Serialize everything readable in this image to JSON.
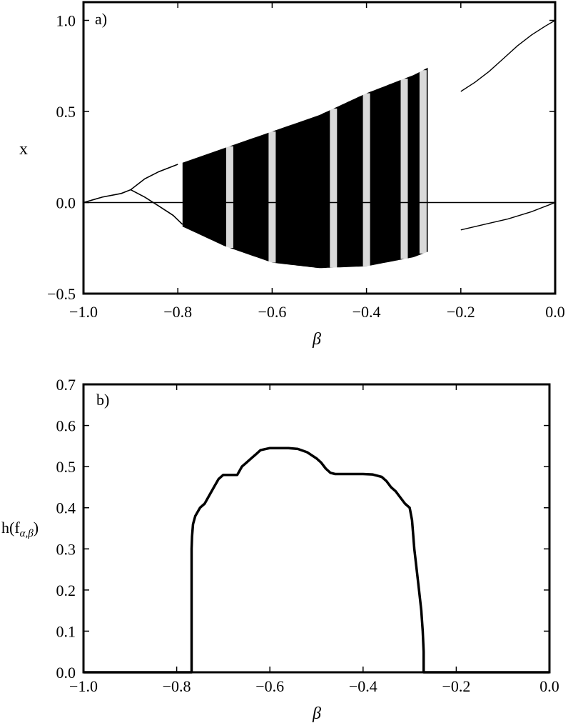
{
  "chart_data": [
    {
      "type": "scatter",
      "panel_label": "a)",
      "xlabel": "β",
      "ylabel": "x",
      "xlim": [
        -1.0,
        0.0
      ],
      "ylim": [
        -0.5,
        1.1
      ],
      "x_ticks": [
        "−1.0",
        "−0.8",
        "−0.6",
        "−0.4",
        "−0.2",
        "0.0"
      ],
      "x_tick_values": [
        -1.0,
        -0.8,
        -0.6,
        -0.4,
        -0.2,
        0.0
      ],
      "y_ticks": [
        "−0.5",
        "0.0",
        "0.5",
        "1.0"
      ],
      "y_tick_values": [
        -0.5,
        0.0,
        0.5,
        1.0
      ],
      "grid": false,
      "description_series": [
        {
          "role": "unstable-fixed-point-line",
          "x": [
            -1.0,
            0.0
          ],
          "y": [
            0.0,
            0.0
          ]
        },
        {
          "role": "stable-branch-upper-right",
          "x": [
            -0.2,
            -0.17,
            -0.14,
            -0.11,
            -0.08,
            -0.05,
            -0.02,
            0.0
          ],
          "y": [
            0.61,
            0.66,
            0.72,
            0.79,
            0.86,
            0.92,
            0.97,
            1.0
          ]
        },
        {
          "role": "stable-branch-lower-right",
          "x": [
            -0.2,
            -0.15,
            -0.1,
            -0.05,
            0.0
          ],
          "y": [
            -0.15,
            -0.12,
            -0.09,
            -0.05,
            0.0
          ]
        },
        {
          "role": "chaotic-band-upper-envelope",
          "x": [
            -0.9,
            -0.85,
            -0.8,
            -0.7,
            -0.6,
            -0.5,
            -0.4,
            -0.3,
            -0.27
          ],
          "y": [
            0.07,
            0.17,
            0.21,
            0.3,
            0.39,
            0.48,
            0.6,
            0.7,
            0.74
          ]
        },
        {
          "role": "chaotic-band-lower-envelope",
          "x": [
            -0.9,
            -0.85,
            -0.8,
            -0.7,
            -0.6,
            -0.5,
            -0.4,
            -0.3,
            -0.27
          ],
          "y": [
            0.07,
            -0.04,
            -0.12,
            -0.24,
            -0.33,
            -0.36,
            -0.35,
            -0.3,
            -0.27
          ]
        }
      ],
      "chaotic_region": {
        "x_start": -0.79,
        "x_end": -0.27
      },
      "periodic_windows": [
        -0.69,
        -0.6,
        -0.47,
        -0.4,
        -0.32,
        -0.28
      ]
    },
    {
      "type": "line",
      "panel_label": "b)",
      "xlabel": "β",
      "ylabel": "h(f",
      "ylabel_subscript": "α,β",
      "ylabel_close": ")",
      "xlim": [
        -1.0,
        0.0
      ],
      "ylim": [
        0.0,
        0.7
      ],
      "x_ticks": [
        "−1.0",
        "−0.8",
        "−0.6",
        "−0.4",
        "−0.2",
        "0.0"
      ],
      "x_tick_values": [
        -1.0,
        -0.8,
        -0.6,
        -0.4,
        -0.2,
        0.0
      ],
      "y_ticks": [
        "0.0",
        "0.1",
        "0.2",
        "0.3",
        "0.4",
        "0.5",
        "0.6",
        "0.7"
      ],
      "y_tick_values": [
        0.0,
        0.1,
        0.2,
        0.3,
        0.4,
        0.5,
        0.6,
        0.7
      ],
      "grid": false,
      "series": [
        {
          "x": [
            -1.0,
            -0.768,
            -0.768,
            -0.767,
            -0.765,
            -0.76,
            -0.75,
            -0.74,
            -0.73,
            -0.72,
            -0.71,
            -0.7,
            -0.69,
            -0.68,
            -0.67,
            -0.66,
            -0.65,
            -0.64,
            -0.63,
            -0.62,
            -0.6,
            -0.58,
            -0.56,
            -0.54,
            -0.52,
            -0.5,
            -0.49,
            -0.48,
            -0.47,
            -0.46,
            -0.45,
            -0.44,
            -0.42,
            -0.4,
            -0.38,
            -0.36,
            -0.35,
            -0.34,
            -0.33,
            -0.32,
            -0.31,
            -0.3,
            -0.295,
            -0.29,
            -0.285,
            -0.28,
            -0.275,
            -0.272,
            -0.27,
            -0.27,
            0.0
          ],
          "y": [
            0.0,
            0.0,
            0.3,
            0.33,
            0.36,
            0.38,
            0.4,
            0.41,
            0.43,
            0.45,
            0.47,
            0.48,
            0.48,
            0.48,
            0.48,
            0.5,
            0.51,
            0.52,
            0.53,
            0.54,
            0.545,
            0.545,
            0.545,
            0.543,
            0.535,
            0.52,
            0.51,
            0.495,
            0.485,
            0.482,
            0.482,
            0.482,
            0.482,
            0.482,
            0.481,
            0.475,
            0.465,
            0.45,
            0.44,
            0.425,
            0.41,
            0.4,
            0.37,
            0.3,
            0.25,
            0.2,
            0.15,
            0.1,
            0.05,
            0.0,
            0.0
          ]
        }
      ]
    }
  ]
}
